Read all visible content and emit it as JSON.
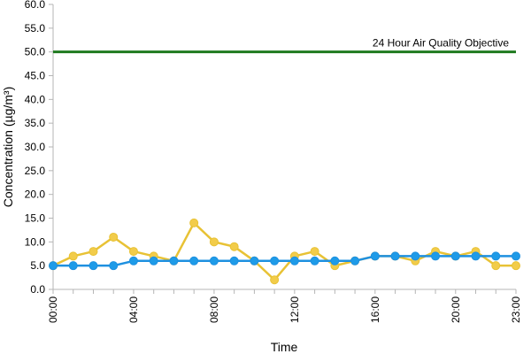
{
  "chart_data": {
    "type": "line",
    "title": "",
    "xlabel": "Time",
    "ylabel": "Concentration (µg/m³)",
    "ylim": [
      0,
      60
    ],
    "yticks": [
      "0.0",
      "5.0",
      "10.0",
      "15.0",
      "20.0",
      "25.0",
      "30.0",
      "35.0",
      "40.0",
      "45.0",
      "50.0",
      "55.0",
      "60.0"
    ],
    "xlim": [
      0,
      23
    ],
    "xticks": [
      "00:00",
      "04:00",
      "08:00",
      "12:00",
      "16:00",
      "20:00",
      "23:00"
    ],
    "xtick_hours": [
      0,
      4,
      8,
      12,
      16,
      20,
      23
    ],
    "grid": false,
    "legend": "none",
    "x": [
      0,
      1,
      2,
      3,
      4,
      5,
      6,
      7,
      8,
      9,
      10,
      11,
      12,
      13,
      14,
      15,
      16,
      17,
      18,
      19,
      20,
      21,
      22,
      23
    ],
    "series": [
      {
        "color": "#e8c235",
        "marker_color": "#f2cc4a",
        "values": [
          5,
          7,
          8,
          11,
          8,
          7,
          6,
          14,
          10,
          9,
          6,
          2,
          7,
          8,
          5,
          6,
          7,
          7,
          6,
          8,
          7,
          8,
          5,
          5
        ]
      },
      {
        "color": "#1e90e0",
        "marker_color": "#1e9be8",
        "values": [
          5,
          5,
          5,
          5,
          6,
          6,
          6,
          6,
          6,
          6,
          6,
          6,
          6,
          6,
          6,
          6,
          7,
          7,
          7,
          7,
          7,
          7,
          7,
          7
        ]
      }
    ],
    "reference_line": {
      "value": 50,
      "label": "24 Hour Air Quality Objective",
      "color": "#1e7a1e"
    }
  }
}
